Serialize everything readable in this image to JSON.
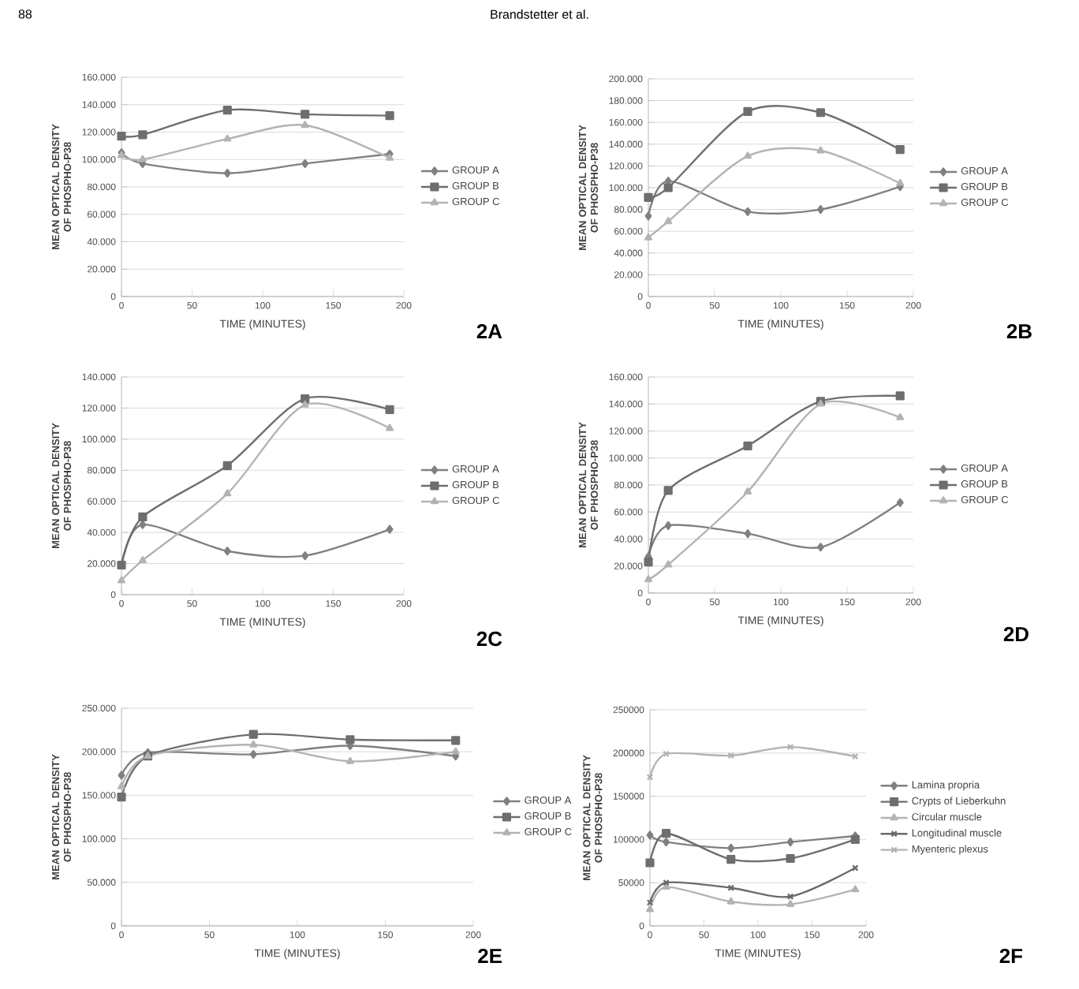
{
  "chart_data": [
    {
      "type": "line",
      "xlabel": "TIME (MINUTES)",
      "ylabel": "MEAN OPTICAL DENSITY OF PHOSPHO-P38",
      "annotations": [
        "2A",
        "88",
        "Brandstetter et al."
      ],
      "x": [
        0,
        15,
        75,
        130,
        190
      ],
      "xlim": [
        0,
        200
      ],
      "xticks": [
        0,
        50,
        100,
        150,
        200
      ],
      "ylim": [
        0,
        160000
      ],
      "yticks": [
        0,
        {
          "value": 20000,
          "label": "20.000"
        },
        {
          "value": 40000,
          "label": "40.000"
        },
        {
          "value": 60000,
          "label": "60.000"
        },
        {
          "value": 80000,
          "label": "80.000"
        },
        {
          "value": 100000,
          "label": "100.000"
        },
        {
          "value": 120000,
          "label": "120.000"
        },
        {
          "value": 140000,
          "label": "140.000"
        },
        {
          "value": 160000,
          "label": "160.000"
        }
      ],
      "grid": "y",
      "legend": "right",
      "line_style": "solid",
      "series": [
        {
          "name": "GROUP A",
          "color": "#808080",
          "marker": "diamond",
          "values": [
            105000,
            97000,
            90000,
            97000,
            104000
          ]
        },
        {
          "name": "GROUP B",
          "color": "#6e6e6e",
          "marker": "square",
          "values": [
            117000,
            118000,
            136000,
            133000,
            132000
          ]
        },
        {
          "name": "GROUP C",
          "color": "#b3b3b3",
          "marker": "triangle",
          "values": [
            103000,
            100000,
            115000,
            125000,
            101000
          ]
        }
      ]
    },
    {
      "type": "line",
      "xlabel": "TIME (MINUTES)",
      "ylabel": "MEAN OPTICAL DENSITY OF PHOSPHO-P38",
      "annotations": [
        "2B"
      ],
      "x": [
        0,
        15,
        75,
        130,
        190
      ],
      "xlim": [
        0,
        200
      ],
      "xticks": [
        0,
        50,
        100,
        150,
        200
      ],
      "ylim": [
        0,
        200000
      ],
      "yticks": [
        0,
        {
          "value": 20000,
          "label": "20.000"
        },
        {
          "value": 40000,
          "label": "40.000"
        },
        {
          "value": 60000,
          "label": "60.000"
        },
        {
          "value": 80000,
          "label": "80.000"
        },
        {
          "value": 100000,
          "label": "100.000"
        },
        {
          "value": 120000,
          "label": "120.000"
        },
        {
          "value": 140000,
          "label": "140.000"
        },
        {
          "value": 160000,
          "label": "160.000"
        },
        {
          "value": 180000,
          "label": "180.000"
        },
        {
          "value": 200000,
          "label": "200.000"
        }
      ],
      "grid": "y",
      "legend": "right",
      "line_style": "solid",
      "series": [
        {
          "name": "GROUP A",
          "color": "#808080",
          "marker": "diamond",
          "values": [
            74000,
            106000,
            78000,
            80000,
            101000
          ]
        },
        {
          "name": "GROUP B",
          "color": "#6e6e6e",
          "marker": "square",
          "values": [
            91000,
            100000,
            170000,
            169000,
            135000
          ]
        },
        {
          "name": "GROUP C",
          "color": "#b3b3b3",
          "marker": "triangle",
          "values": [
            54000,
            69000,
            129000,
            134000,
            104000
          ]
        }
      ]
    },
    {
      "type": "line",
      "xlabel": "TIME (MINUTES)",
      "ylabel": "MEAN OPTICAL DENSITY OF PHOSPHO-P38",
      "annotations": [
        "2C"
      ],
      "x": [
        0,
        15,
        75,
        130,
        190
      ],
      "xlim": [
        0,
        200
      ],
      "xticks": [
        0,
        50,
        100,
        150,
        200
      ],
      "ylim": [
        0,
        140000
      ],
      "yticks": [
        0,
        {
          "value": 20000,
          "label": "20.000"
        },
        {
          "value": 40000,
          "label": "40.000"
        },
        {
          "value": 60000,
          "label": "60.000"
        },
        {
          "value": 80000,
          "label": "80.000"
        },
        {
          "value": 100000,
          "label": "100.000"
        },
        {
          "value": 120000,
          "label": "120.000"
        },
        {
          "value": 140000,
          "label": "140.000"
        }
      ],
      "grid": "y",
      "legend": "right",
      "line_style": "solid",
      "series": [
        {
          "name": "GROUP A",
          "color": "#808080",
          "marker": "diamond",
          "values": [
            19000,
            45000,
            28000,
            25000,
            42000
          ]
        },
        {
          "name": "GROUP B",
          "color": "#6e6e6e",
          "marker": "square",
          "values": [
            19000,
            50000,
            83000,
            126000,
            119000
          ]
        },
        {
          "name": "GROUP C",
          "color": "#b3b3b3",
          "marker": "triangle",
          "values": [
            9000,
            22000,
            65000,
            122000,
            107000
          ]
        }
      ]
    },
    {
      "type": "line",
      "xlabel": "TIME (MINUTES)",
      "ylabel": "MEAN OPTICAL DENSITY OF PHOSPHO-P38",
      "annotations": [
        "2D"
      ],
      "x": [
        0,
        15,
        75,
        130,
        190
      ],
      "xlim": [
        0,
        200
      ],
      "xticks": [
        0,
        50,
        100,
        150,
        200
      ],
      "ylim": [
        0,
        160000
      ],
      "yticks": [
        0,
        {
          "value": 20000,
          "label": "20.000"
        },
        {
          "value": 40000,
          "label": "40.000"
        },
        {
          "value": 60000,
          "label": "60.000"
        },
        {
          "value": 80000,
          "label": "80.000"
        },
        {
          "value": 100000,
          "label": "100.000"
        },
        {
          "value": 120000,
          "label": "120.000"
        },
        {
          "value": 140000,
          "label": "140.000"
        },
        {
          "value": 160000,
          "label": "160.000"
        }
      ],
      "grid": "y",
      "legend": "right",
      "line_style": "solid",
      "series": [
        {
          "name": "GROUP A",
          "color": "#808080",
          "marker": "diamond",
          "values": [
            27000,
            50000,
            44000,
            34000,
            67000
          ]
        },
        {
          "name": "GROUP B",
          "color": "#6e6e6e",
          "marker": "square",
          "values": [
            23000,
            76000,
            109000,
            142000,
            146000
          ]
        },
        {
          "name": "GROUP C",
          "color": "#b3b3b3",
          "marker": "triangle",
          "values": [
            10000,
            21000,
            75000,
            140000,
            130000
          ]
        }
      ]
    },
    {
      "type": "line",
      "xlabel": "TIME (MINUTES)",
      "ylabel": "MEAN OPTICAL DENSITY OF PHOSPHO-P38",
      "annotations": [
        "2E"
      ],
      "x": [
        0,
        15,
        75,
        130,
        190
      ],
      "xlim": [
        0,
        200
      ],
      "xticks": [
        0,
        50,
        100,
        150,
        200
      ],
      "ylim": [
        0,
        250000
      ],
      "yticks": [
        0,
        {
          "value": 50000,
          "label": "50.000"
        },
        {
          "value": 100000,
          "label": "100.000"
        },
        {
          "value": 150000,
          "label": "150.000"
        },
        {
          "value": 200000,
          "label": "200.000"
        },
        {
          "value": 250000,
          "label": "250.000"
        }
      ],
      "grid": "y",
      "legend": "right",
      "line_style": "solid",
      "series": [
        {
          "name": "GROUP A",
          "color": "#808080",
          "marker": "diamond",
          "values": [
            173000,
            199000,
            197000,
            207000,
            195000
          ]
        },
        {
          "name": "GROUP B",
          "color": "#6e6e6e",
          "marker": "square",
          "values": [
            148000,
            195000,
            220000,
            214000,
            213000
          ]
        },
        {
          "name": "GROUP C",
          "color": "#b3b3b3",
          "marker": "triangle",
          "values": [
            160000,
            195000,
            208000,
            189000,
            200000
          ]
        }
      ]
    },
    {
      "type": "line",
      "xlabel": "TIME (MINUTES)",
      "ylabel": "MEAN OPTICAL DENSITY OF PHOSPHO-P38",
      "annotations": [
        "2F"
      ],
      "x": [
        0,
        15,
        75,
        130,
        190
      ],
      "xlim": [
        0,
        200
      ],
      "xticks": [
        0,
        50,
        100,
        150,
        200
      ],
      "ylim": [
        0,
        250000
      ],
      "yticks": [
        0,
        50000,
        100000,
        150000,
        200000,
        250000
      ],
      "grid": "y",
      "legend": "right",
      "line_style": "solid",
      "series": [
        {
          "name": "Lamina propria",
          "color": "#808080",
          "marker": "diamond",
          "values": [
            105000,
            97000,
            90000,
            97000,
            104000
          ]
        },
        {
          "name": "Crypts of Lieberkuhn",
          "color": "#6e6e6e",
          "marker": "square",
          "values": [
            73000,
            107000,
            77000,
            78000,
            100000
          ]
        },
        {
          "name": "Circular muscle",
          "color": "#b3b3b3",
          "marker": "triangle",
          "values": [
            19000,
            45000,
            28000,
            25000,
            42000
          ]
        },
        {
          "name": "Longitudinal muscle",
          "color": "#6a6a6a",
          "marker": "cross",
          "values": [
            27000,
            50000,
            44000,
            34000,
            67000
          ]
        },
        {
          "name": "Myenteric plexus",
          "color": "#b3b3b3",
          "marker": "cross",
          "values": [
            172000,
            199000,
            197000,
            207000,
            196000
          ]
        }
      ]
    }
  ]
}
